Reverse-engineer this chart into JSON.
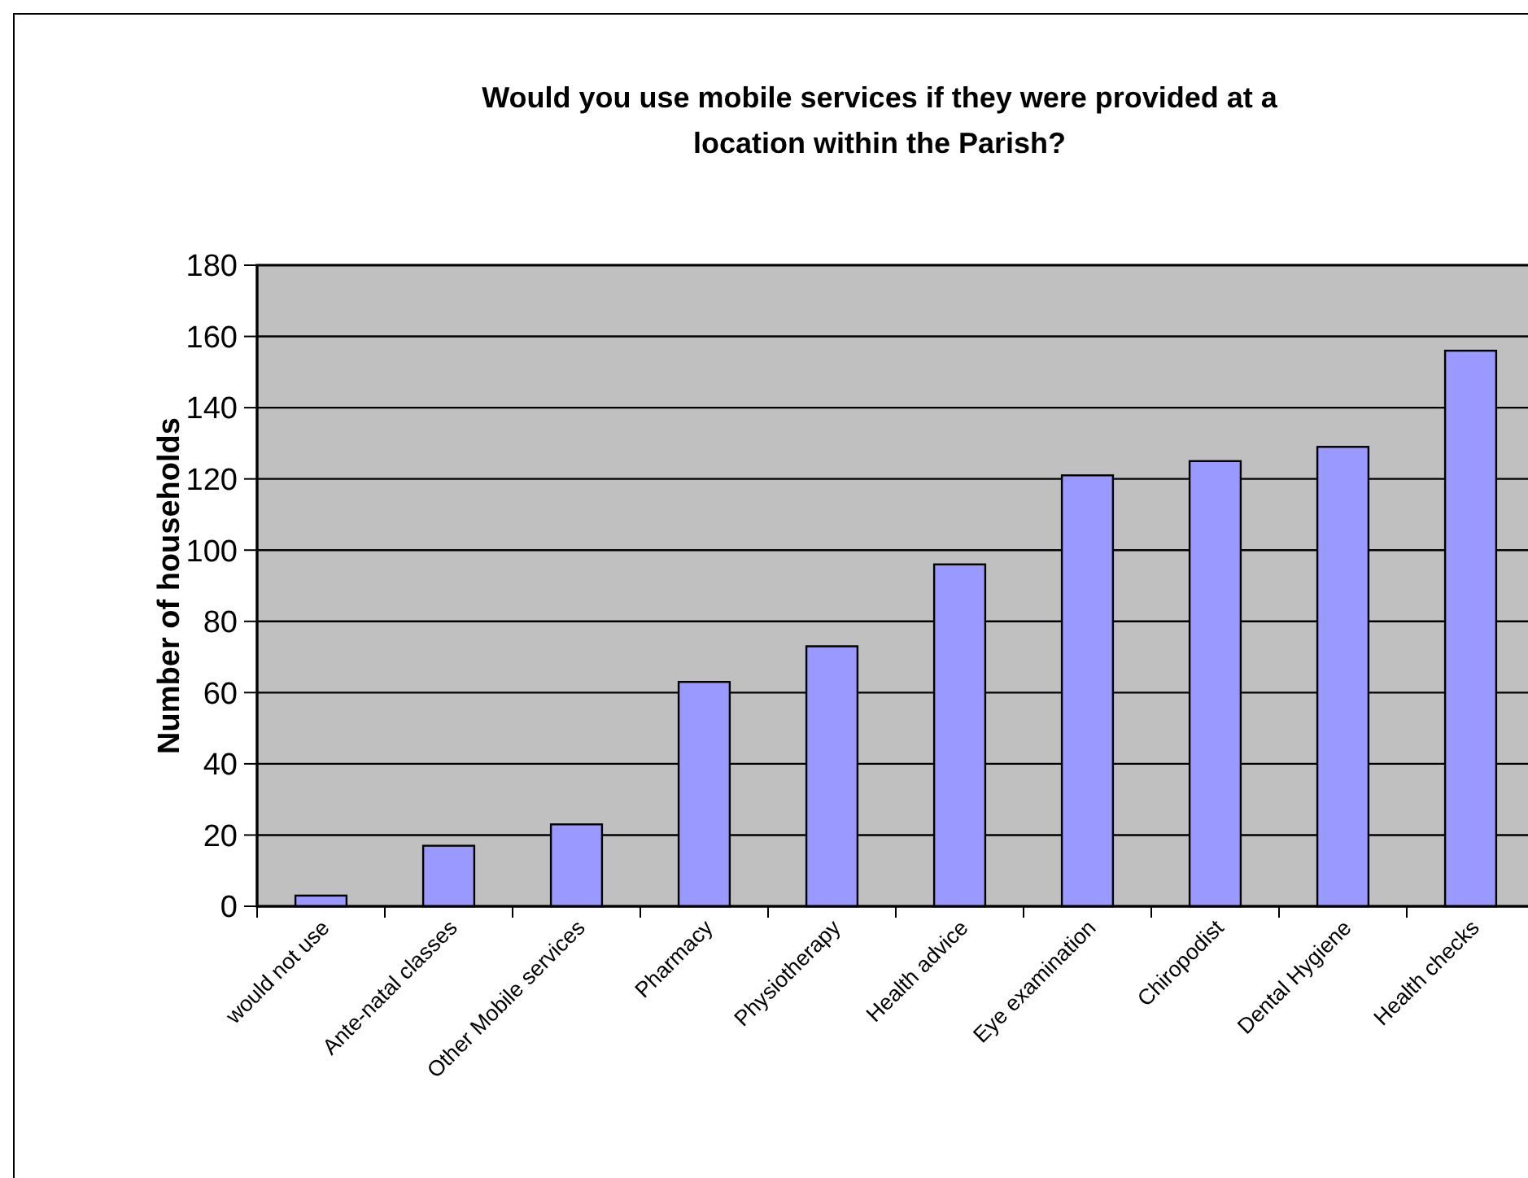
{
  "chart_data": {
    "type": "bar",
    "title": "Would you use mobile services if they were provided at a\nlocation within the Parish?",
    "ylabel": "Number of households",
    "categories": [
      "would not use",
      "Ante-natal classes",
      "Other Mobile services",
      "Pharmacy",
      "Physiotherapy",
      "Health advice",
      "Eye examination",
      "Chiropodist",
      "Dental Hygiene",
      "Health checks"
    ],
    "values": [
      3,
      17,
      23,
      63,
      73,
      96,
      121,
      125,
      129,
      156
    ],
    "color": "#9999ff",
    "ylim": [
      0,
      180
    ],
    "yticks": [
      0,
      20,
      40,
      60,
      80,
      100,
      120,
      140,
      160,
      180
    ],
    "grid": "y"
  }
}
